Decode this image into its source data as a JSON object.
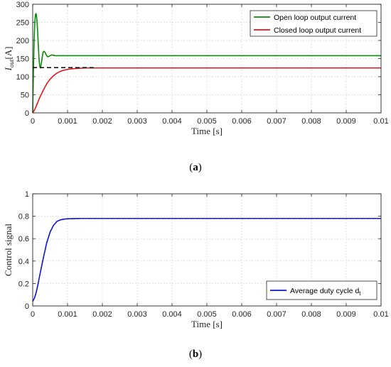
{
  "chart_data": [
    {
      "type": "line",
      "caption_letter": "a",
      "xlabel": "Time [s]",
      "ylabel_base": "I",
      "ylabel_sub": "out",
      "ylabel_unit": "[A]",
      "xlim": [
        0,
        0.01
      ],
      "ylim": [
        0,
        300
      ],
      "x_ticks": [
        0,
        0.001,
        0.002,
        0.003,
        0.004,
        0.005,
        0.006,
        0.007,
        0.008,
        0.009,
        0.01
      ],
      "x_tick_labels": [
        "0",
        "0.001",
        "0.002",
        "0.003",
        "0.004",
        "0.005",
        "0.006",
        "0.007",
        "0.008",
        "0.009",
        "0.01"
      ],
      "y_ticks": [
        0,
        50,
        100,
        150,
        200,
        250,
        300
      ],
      "y_tick_labels": [
        "0",
        "50",
        "100",
        "150",
        "200",
        "250",
        "300"
      ],
      "grid": true,
      "legend_position": "top-right",
      "series": [
        {
          "name": "Open loop output current",
          "color": "#0a8a0a",
          "x": [
            0,
            2e-05,
            4e-05,
            6e-05,
            8e-05,
            0.0001,
            0.00012,
            0.00014,
            0.00016,
            0.00018,
            0.0002,
            0.00022,
            0.00025,
            0.00028,
            0.0003,
            0.00033,
            0.00036,
            0.0004,
            0.00043,
            0.00046,
            0.0005,
            0.00055,
            0.0006,
            0.00065,
            0.0007,
            0.0008,
            0.001,
            0.002,
            0.004,
            0.006,
            0.008,
            0.01
          ],
          "y": [
            0,
            110,
            200,
            250,
            272,
            274,
            258,
            228,
            188,
            152,
            130,
            124,
            138,
            158,
            168,
            170,
            166,
            158,
            155,
            156,
            158,
            160,
            159,
            158,
            158,
            158,
            158,
            158,
            158,
            158,
            158,
            158
          ]
        },
        {
          "name": "Closed loop output current",
          "color": "#e8141a",
          "x": [
            0,
            5e-05,
            0.0001,
            0.00015,
            0.0002,
            0.0003,
            0.0004,
            0.0005,
            0.0006,
            0.0007,
            0.0008,
            0.0009,
            0.001,
            0.0011,
            0.0012,
            0.0013,
            0.0014,
            0.0015,
            0.002,
            0.004,
            0.006,
            0.008,
            0.01
          ],
          "y": [
            0,
            8,
            18,
            30,
            42,
            62,
            80,
            93,
            103,
            110,
            115,
            118,
            120,
            121.5,
            122.5,
            123,
            123.5,
            124,
            124,
            124,
            124,
            124,
            124
          ]
        },
        {
          "color": "#000000",
          "dashed": true,
          "x": [
            0,
            0.00175
          ],
          "y": [
            125,
            125
          ]
        }
      ]
    },
    {
      "type": "line",
      "caption_letter": "b",
      "xlabel": "Time [s]",
      "ylabel": "Control signal",
      "xlim": [
        0,
        0.01
      ],
      "ylim": [
        0,
        1
      ],
      "x_ticks": [
        0,
        0.001,
        0.002,
        0.003,
        0.004,
        0.005,
        0.006,
        0.007,
        0.008,
        0.009,
        0.01
      ],
      "x_tick_labels": [
        "0",
        "0.001",
        "0.002",
        "0.003",
        "0.004",
        "0.005",
        "0.006",
        "0.007",
        "0.008",
        "0.009",
        "0.01"
      ],
      "y_ticks": [
        0,
        0.2,
        0.4,
        0.6,
        0.8,
        1
      ],
      "y_tick_labels": [
        "0",
        "0.2",
        "0.4",
        "0.6",
        "0.8",
        "1"
      ],
      "grid": true,
      "legend_position": "bottom-right",
      "series": [
        {
          "name": "Average duty cycle d",
          "name_sub": "t",
          "color": "#0a14d8",
          "x": [
            0,
            5e-05,
            0.0001,
            0.00015,
            0.0002,
            0.0003,
            0.0004,
            0.0005,
            0.0006,
            0.0007,
            0.0008,
            0.0009,
            0.001,
            0.0011,
            0.0012,
            0.0013,
            0.0014,
            0.0015,
            0.002,
            0.004,
            0.006,
            0.008,
            0.01
          ],
          "y": [
            0.04,
            0.07,
            0.12,
            0.19,
            0.27,
            0.42,
            0.56,
            0.66,
            0.72,
            0.755,
            0.768,
            0.774,
            0.777,
            0.778,
            0.779,
            0.7795,
            0.78,
            0.78,
            0.78,
            0.78,
            0.78,
            0.78,
            0.78
          ]
        }
      ]
    }
  ]
}
